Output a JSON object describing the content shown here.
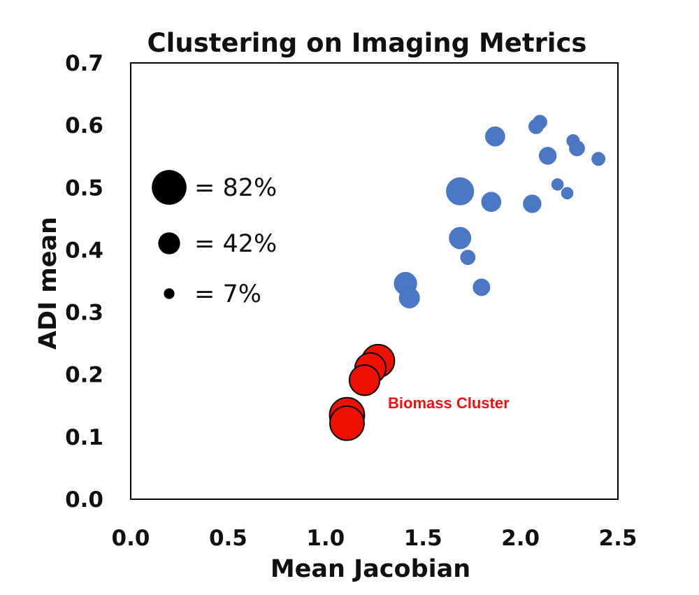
{
  "chart_data": {
    "type": "scatter",
    "title": "Clustering on Imaging Metrics",
    "xlabel": "Mean Jacobian",
    "ylabel": "ADI mean",
    "xlim": [
      0.0,
      2.5
    ],
    "ylim": [
      0.0,
      0.7
    ],
    "x_ticks": [
      "0.0",
      "0.5",
      "1.0",
      "1.5",
      "2.0",
      "2.5"
    ],
    "y_ticks": [
      "0.0",
      "0.1",
      "0.2",
      "0.3",
      "0.4",
      "0.5",
      "0.6",
      "0.7"
    ],
    "grid": false,
    "size_legend": {
      "placement": "left",
      "entries": [
        {
          "label": "= 82%",
          "size_pct": 82
        },
        {
          "label": "= 42%",
          "size_pct": 42
        },
        {
          "label": "= 7%",
          "size_pct": 7
        }
      ]
    },
    "annotations": [
      {
        "text": "Biomass Cluster",
        "x": 1.32,
        "y": 0.155,
        "color": "#ee1111"
      }
    ],
    "series": [
      {
        "color": "#4a78c4",
        "points": [
          {
            "x": 2.1,
            "y": 0.605,
            "size_pct": 18
          },
          {
            "x": 2.08,
            "y": 0.598,
            "size_pct": 20
          },
          {
            "x": 1.87,
            "y": 0.582,
            "size_pct": 35
          },
          {
            "x": 2.27,
            "y": 0.575,
            "size_pct": 14
          },
          {
            "x": 2.29,
            "y": 0.563,
            "size_pct": 22
          },
          {
            "x": 2.14,
            "y": 0.551,
            "size_pct": 28
          },
          {
            "x": 2.4,
            "y": 0.546,
            "size_pct": 16
          },
          {
            "x": 2.19,
            "y": 0.505,
            "size_pct": 11
          },
          {
            "x": 1.69,
            "y": 0.494,
            "size_pct": 60
          },
          {
            "x": 2.24,
            "y": 0.491,
            "size_pct": 11
          },
          {
            "x": 1.85,
            "y": 0.477,
            "size_pct": 35
          },
          {
            "x": 2.06,
            "y": 0.474,
            "size_pct": 30
          },
          {
            "x": 1.69,
            "y": 0.419,
            "size_pct": 42
          },
          {
            "x": 1.73,
            "y": 0.388,
            "size_pct": 20
          },
          {
            "x": 1.41,
            "y": 0.346,
            "size_pct": 45
          },
          {
            "x": 1.8,
            "y": 0.34,
            "size_pct": 27
          },
          {
            "x": 1.43,
            "y": 0.323,
            "size_pct": 38
          }
        ]
      },
      {
        "color": "#ee1100",
        "points": [
          {
            "x": 1.27,
            "y": 0.222,
            "size_pct": 75
          },
          {
            "x": 1.23,
            "y": 0.21,
            "size_pct": 70
          },
          {
            "x": 1.2,
            "y": 0.191,
            "size_pct": 68
          },
          {
            "x": 1.11,
            "y": 0.135,
            "size_pct": 82
          },
          {
            "x": 1.11,
            "y": 0.122,
            "size_pct": 80
          }
        ]
      }
    ]
  }
}
